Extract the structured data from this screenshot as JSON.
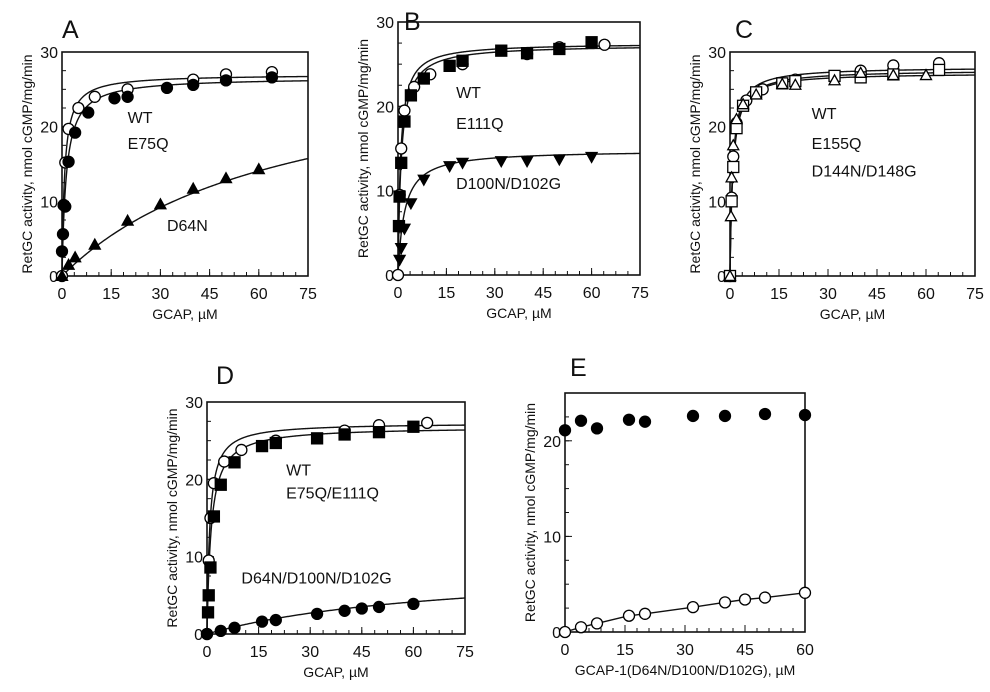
{
  "chart_data": [
    {
      "panel": "A",
      "type": "scatter",
      "xlabel": "GCAP, µM",
      "ylabel": "RetGC activity, nmol cGMP/mg/min",
      "xlim": [
        0,
        75
      ],
      "ylim": [
        0,
        30
      ],
      "xticks": [
        0,
        15,
        30,
        45,
        60,
        75
      ],
      "yticks": [
        0,
        10,
        20,
        30
      ],
      "series": [
        {
          "name": "WT",
          "marker": "circle-open",
          "fit": {
            "vmax": 27.0,
            "k": 0.8
          },
          "x": [
            0,
            0.5,
            1,
            2,
            5,
            10,
            20,
            40,
            50,
            64
          ],
          "y": [
            0,
            9.5,
            15.2,
            19.7,
            22.5,
            24,
            25,
            26.3,
            27,
            27.3
          ]
        },
        {
          "name": "E75Q",
          "marker": "circle-filled",
          "fit": {
            "vmax": 26.6,
            "k": 1.3
          },
          "x": [
            0,
            0.3,
            0.5,
            1,
            2,
            4,
            8,
            16,
            20,
            32,
            40,
            50,
            64
          ],
          "y": [
            3.3,
            5.6,
            9.5,
            9.3,
            15.3,
            19.2,
            21.9,
            23.8,
            24,
            25.2,
            25.6,
            26.2,
            26.6
          ]
        },
        {
          "name": "D64N",
          "marker": "triangle-filled",
          "fit": {
            "vmax": 30.0,
            "k": 68
          },
          "x": [
            0,
            2,
            4,
            10,
            20,
            30,
            40,
            50,
            60
          ],
          "y": [
            0,
            1.5,
            2.5,
            4.2,
            7.4,
            9.6,
            11.7,
            13.1,
            14.3
          ]
        }
      ],
      "annotations": [
        "WT",
        "E75Q",
        "D64N"
      ]
    },
    {
      "panel": "B",
      "type": "scatter",
      "xlabel": "GCAP, µM",
      "ylabel": "RetGC activity, nmol cGMP/mg/min",
      "xlim": [
        0,
        75
      ],
      "ylim": [
        0,
        30
      ],
      "xticks": [
        0,
        15,
        30,
        45,
        60,
        75
      ],
      "yticks": [
        0,
        10,
        20,
        30
      ],
      "series": [
        {
          "name": "WT",
          "marker": "circle-open",
          "fit": {
            "vmax": 27.5,
            "k": 0.8
          },
          "x": [
            0,
            0.5,
            1,
            2,
            5,
            10,
            20,
            40,
            50,
            64
          ],
          "y": [
            0,
            9.5,
            15,
            19.5,
            22.3,
            23.8,
            25,
            26.2,
            27,
            27.3
          ]
        },
        {
          "name": "E111Q",
          "marker": "square-filled",
          "fit": {
            "vmax": 27.3,
            "k": 1.0
          },
          "x": [
            0.3,
            0.5,
            1,
            2,
            4,
            8,
            16,
            20,
            32,
            40,
            50,
            60
          ],
          "y": [
            5.8,
            9.3,
            13.3,
            18.2,
            21.3,
            23.3,
            24.8,
            25.4,
            26.6,
            26.3,
            26.8,
            27.6
          ]
        },
        {
          "name": "D100N/D102G",
          "marker": "triangle-down-filled",
          "fit": {
            "vmax": 14.8,
            "k": 2.0
          },
          "x": [
            0.5,
            1,
            2,
            4,
            8,
            16,
            20,
            32,
            40,
            50,
            60
          ],
          "y": [
            1.8,
            3.2,
            5.5,
            8.5,
            11.3,
            12.9,
            13.3,
            13.5,
            13.5,
            13.7,
            14
          ]
        }
      ],
      "annotations": [
        "WT",
        "E111Q",
        "D100N/D102G"
      ]
    },
    {
      "panel": "C",
      "type": "scatter",
      "xlabel": "GCAP, µM",
      "ylabel": "RetGC activity, nmol cGMP/mg/min",
      "xlim": [
        0,
        75
      ],
      "ylim": [
        0,
        30
      ],
      "xticks": [
        0,
        15,
        30,
        45,
        60,
        75
      ],
      "yticks": [
        0,
        10,
        20,
        30
      ],
      "series": [
        {
          "name": "WT",
          "marker": "circle-open",
          "fit": {
            "vmax": 28.0,
            "k": 0.8
          },
          "x": [
            0,
            0.5,
            1,
            2,
            5,
            10,
            20,
            40,
            50,
            64
          ],
          "y": [
            0,
            10.5,
            16,
            20.5,
            23.5,
            25,
            26.3,
            27.5,
            28.2,
            28.5
          ]
        },
        {
          "name": "E155Q",
          "marker": "square-open",
          "fit": {
            "vmax": 27.6,
            "k": 0.9
          },
          "x": [
            0,
            0.5,
            1,
            2,
            4,
            8,
            16,
            20,
            32,
            40,
            50,
            64
          ],
          "y": [
            0,
            10,
            14.6,
            19.8,
            22.8,
            24.6,
            25.8,
            26.1,
            26.8,
            26.6,
            27,
            27.6
          ]
        },
        {
          "name": "D144N/D148G",
          "marker": "triangle-open",
          "fit": {
            "vmax": 27.2,
            "k": 0.8
          },
          "x": [
            0,
            0.3,
            0.5,
            1,
            2,
            4,
            8,
            16,
            20,
            32,
            40,
            50,
            60
          ],
          "y": [
            0,
            8,
            13.2,
            17.5,
            21,
            23,
            24.3,
            25.7,
            25.6,
            26.2,
            27.2,
            26.9,
            26.9
          ]
        }
      ],
      "annotations": [
        "WT",
        "E155Q",
        "D144N/D148G"
      ]
    },
    {
      "panel": "D",
      "type": "scatter",
      "xlabel": "GCAP, µM",
      "ylabel": "RetGC activity, nmol cGMP/mg/min",
      "xlim": [
        0,
        75
      ],
      "ylim": [
        0,
        30
      ],
      "xticks": [
        0,
        15,
        30,
        45,
        60,
        75
      ],
      "yticks": [
        0,
        10,
        20,
        30
      ],
      "series": [
        {
          "name": "WT",
          "marker": "circle-open",
          "fit": {
            "vmax": 27.3,
            "k": 0.8
          },
          "x": [
            0,
            0.5,
            1,
            2,
            5,
            10,
            20,
            40,
            50,
            64
          ],
          "y": [
            0,
            9.5,
            15,
            19.5,
            22.3,
            23.8,
            25,
            26.3,
            27,
            27.3
          ]
        },
        {
          "name": "E75Q/E111Q",
          "marker": "square-filled",
          "fit": {
            "vmax": 26.8,
            "k": 1.2
          },
          "x": [
            0.3,
            0.5,
            1,
            2,
            4,
            8,
            16,
            20,
            32,
            40,
            50,
            60
          ],
          "y": [
            2.8,
            5,
            8.6,
            15.2,
            19.3,
            22.2,
            24.3,
            24.7,
            25.3,
            25.8,
            26.1,
            26.8
          ]
        },
        {
          "name": "D64N/D100N/D102G",
          "marker": "circle-filled",
          "fit": {
            "vmax": 9.0,
            "k": 70
          },
          "x": [
            0,
            4,
            8,
            16,
            20,
            32,
            40,
            45,
            50,
            60
          ],
          "y": [
            0,
            0.4,
            0.8,
            1.6,
            1.8,
            2.6,
            3.0,
            3.3,
            3.5,
            3.9
          ]
        }
      ],
      "annotations": [
        "WT",
        "E75Q/E111Q",
        "D64N/D100N/D102G"
      ]
    },
    {
      "panel": "E",
      "type": "scatter",
      "xlabel": "GCAP-1(D64N/D100N/D102G), µM",
      "ylabel": "RetGC activity, nmol cGMP/mg/min",
      "xlim": [
        0,
        60
      ],
      "ylim": [
        0,
        25
      ],
      "xticks": [
        0,
        15,
        30,
        45,
        60
      ],
      "yticks": [
        0,
        10,
        20
      ],
      "series": [
        {
          "name": "filled",
          "marker": "circle-filled",
          "line": false,
          "x": [
            0,
            4,
            8,
            16,
            20,
            32,
            40,
            50,
            60
          ],
          "y": [
            21.1,
            22.1,
            21.3,
            22.2,
            22,
            22.6,
            22.6,
            22.8,
            22.7
          ]
        },
        {
          "name": "open",
          "marker": "circle-open",
          "line": true,
          "x": [
            0,
            4,
            8,
            16,
            20,
            32,
            40,
            45,
            50,
            60
          ],
          "y": [
            0,
            0.5,
            0.9,
            1.7,
            1.9,
            2.6,
            3.1,
            3.4,
            3.6,
            4.1
          ]
        }
      ],
      "annotations": []
    }
  ]
}
